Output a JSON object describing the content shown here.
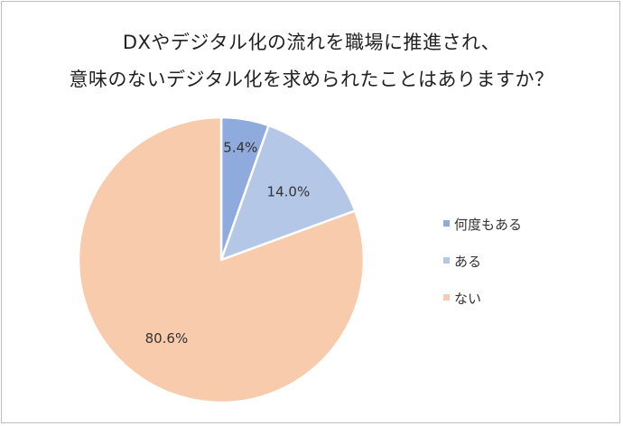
{
  "chart_data": {
    "type": "pie",
    "title_lines": [
      "DXやデジタル化の流れを職場に推進され、",
      "意味のないデジタル化を求められたことはありますか？"
    ],
    "categories": [
      "何度もある",
      "ある",
      "ない"
    ],
    "values": [
      5.4,
      14.0,
      80.6
    ],
    "value_labels": [
      "5.4%",
      "14.0%",
      "80.6%"
    ],
    "colors": [
      "#8faadc",
      "#b4c7e7",
      "#f8cbad"
    ],
    "start_angle": "12 o'clock",
    "direction": "clockwise",
    "legend_position": "right"
  }
}
